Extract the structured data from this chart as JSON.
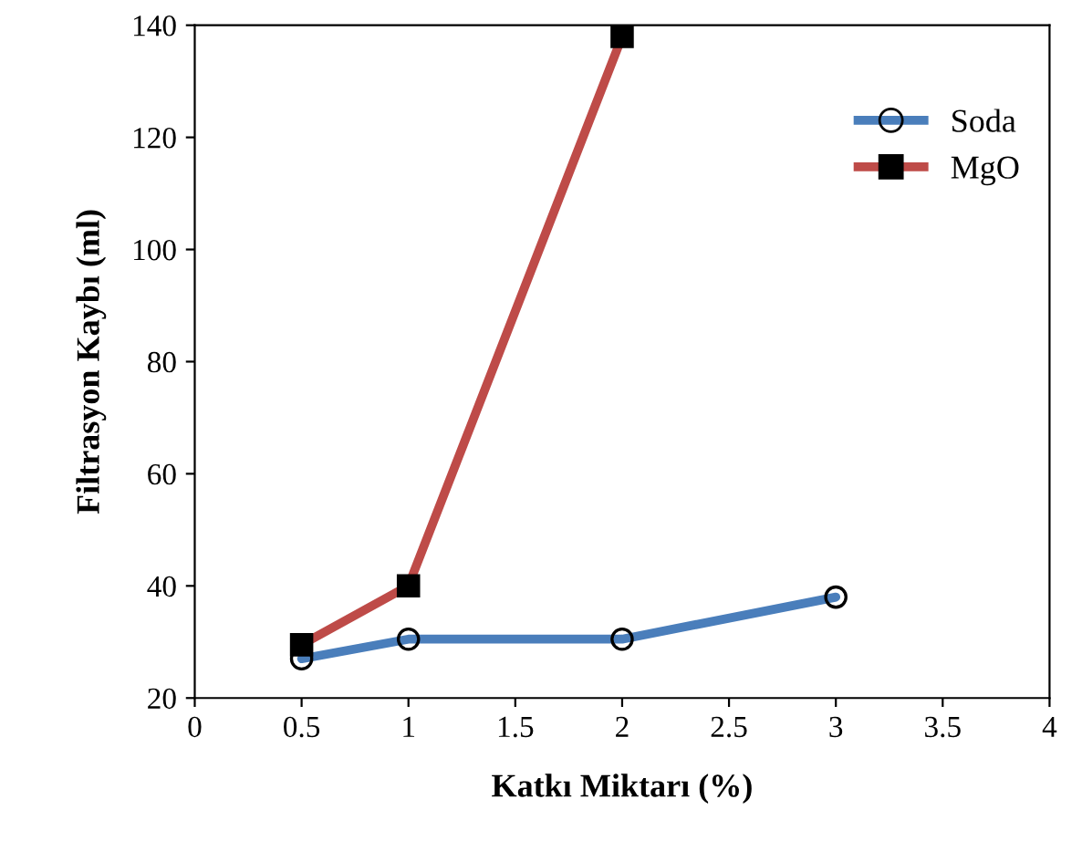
{
  "chart_data": {
    "type": "line",
    "xlabel": "Katkı Miktarı (%)",
    "ylabel": "Filtrasyon Kaybı (ml)",
    "xlim": [
      0,
      4
    ],
    "xticks": [
      0,
      0.5,
      1,
      1.5,
      2,
      2.5,
      3,
      3.5,
      4
    ],
    "ylim": [
      20,
      140
    ],
    "yticks": [
      20,
      40,
      60,
      80,
      100,
      120,
      140
    ],
    "grid": false,
    "legend": "top right",
    "series": [
      {
        "name": "Soda",
        "color": "#4a7ebb",
        "marker": "circle",
        "x": [
          0.5,
          1,
          2,
          3
        ],
        "values": [
          27,
          30.5,
          30.5,
          38
        ]
      },
      {
        "name": "MgO",
        "color": "#be4b48",
        "marker": "square",
        "x": [
          0.5,
          1,
          2
        ],
        "values": [
          29.5,
          40,
          138
        ]
      }
    ]
  }
}
